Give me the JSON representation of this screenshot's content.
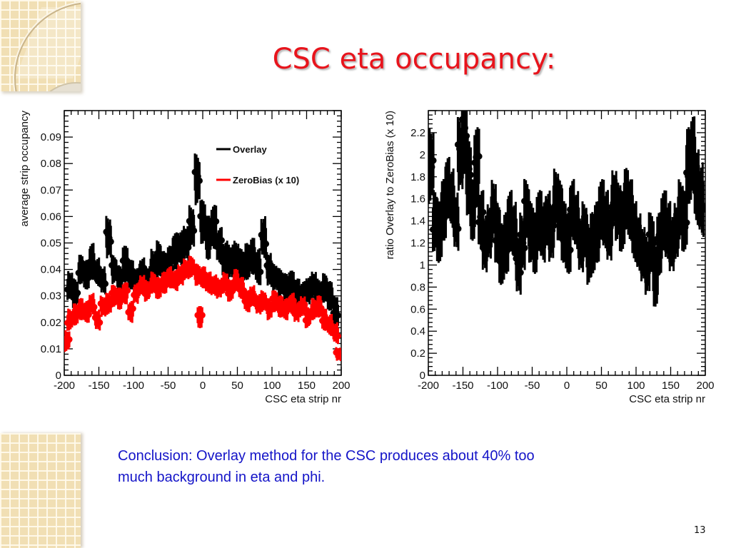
{
  "slide": {
    "title": "CSC eta occupancy:",
    "conclusion_line1": "Conclusion: Overlay method for the CSC produces about 40% too",
    "conclusion_line2": "much background in eta and phi.",
    "page_number": "13",
    "colors": {
      "title": "#e8141c",
      "conclusion": "#1414c8",
      "overlay": "#000000",
      "zerobias": "#ff0000",
      "decoration": "#f1dfb4"
    }
  },
  "chart_data": [
    {
      "type": "scatter",
      "title": "",
      "xlabel": "CSC eta strip nr",
      "ylabel": "average strip occupancy",
      "xlim": [
        -200,
        200
      ],
      "ylim": [
        0,
        0.1
      ],
      "x_ticks": [
        "-200",
        "-150",
        "-100",
        "-50",
        "0",
        "50",
        "100",
        "150",
        "200"
      ],
      "y_ticks": [
        "0",
        "0.01",
        "0.02",
        "0.03",
        "0.04",
        "0.05",
        "0.06",
        "0.07",
        "0.08",
        "0.09"
      ],
      "grid": false,
      "legend": {
        "placement": "top-right",
        "entries": [
          "Overlay",
          "ZeroBias (x 10)"
        ]
      },
      "series": [
        {
          "name": "Overlay",
          "color": "#000000",
          "x": [
            -192,
            -184,
            -176,
            -168,
            -160,
            -152,
            -144,
            -136,
            -128,
            -120,
            -112,
            -104,
            -96,
            -88,
            -80,
            -72,
            -64,
            -56,
            -48,
            -40,
            -32,
            -24,
            -16,
            -8,
            0,
            8,
            16,
            24,
            32,
            40,
            48,
            56,
            64,
            72,
            80,
            88,
            96,
            104,
            112,
            120,
            128,
            136,
            144,
            152,
            160,
            168,
            176,
            184,
            192
          ],
          "y": [
            0.034,
            0.031,
            0.04,
            0.038,
            0.043,
            0.039,
            0.036,
            0.052,
            0.04,
            0.036,
            0.042,
            0.038,
            0.035,
            0.039,
            0.036,
            0.041,
            0.044,
            0.04,
            0.042,
            0.047,
            0.048,
            0.05,
            0.056,
            0.074,
            0.058,
            0.052,
            0.056,
            0.049,
            0.044,
            0.043,
            0.044,
            0.041,
            0.043,
            0.045,
            0.041,
            0.052,
            0.04,
            0.037,
            0.035,
            0.033,
            0.034,
            0.031,
            0.03,
            0.032,
            0.034,
            0.031,
            0.033,
            0.03,
            0.024
          ],
          "err": [
            0.004,
            0.004,
            0.004,
            0.004,
            0.005,
            0.004,
            0.004,
            0.006,
            0.004,
            0.004,
            0.005,
            0.004,
            0.004,
            0.004,
            0.004,
            0.005,
            0.005,
            0.005,
            0.005,
            0.005,
            0.005,
            0.005,
            0.006,
            0.007,
            0.006,
            0.006,
            0.006,
            0.005,
            0.005,
            0.005,
            0.005,
            0.005,
            0.005,
            0.005,
            0.005,
            0.006,
            0.005,
            0.004,
            0.004,
            0.004,
            0.004,
            0.004,
            0.004,
            0.004,
            0.004,
            0.004,
            0.004,
            0.004,
            0.004
          ]
        },
        {
          "name": "ZeroBias (x 10)",
          "color": "#ff0000",
          "x": [
            -196,
            -192,
            -184,
            -176,
            -168,
            -160,
            -152,
            -144,
            -136,
            -128,
            -120,
            -112,
            -104,
            -96,
            -88,
            -80,
            -72,
            -64,
            -56,
            -48,
            -40,
            -32,
            -24,
            -16,
            -8,
            -4,
            0,
            8,
            16,
            24,
            32,
            40,
            48,
            56,
            64,
            72,
            80,
            88,
            96,
            104,
            112,
            120,
            128,
            136,
            144,
            152,
            160,
            168,
            176,
            184,
            192,
            196
          ],
          "y": [
            0.013,
            0.021,
            0.023,
            0.025,
            0.024,
            0.027,
            0.021,
            0.026,
            0.027,
            0.03,
            0.029,
            0.031,
            0.024,
            0.031,
            0.034,
            0.032,
            0.035,
            0.033,
            0.035,
            0.037,
            0.036,
            0.038,
            0.04,
            0.041,
            0.038,
            0.022,
            0.037,
            0.035,
            0.034,
            0.033,
            0.035,
            0.032,
            0.036,
            0.033,
            0.028,
            0.03,
            0.027,
            0.028,
            0.025,
            0.028,
            0.026,
            0.025,
            0.027,
            0.024,
            0.026,
            0.022,
            0.025,
            0.026,
            0.021,
            0.019,
            0.016,
            0.008
          ],
          "err": [
            0.003,
            0.003,
            0.003,
            0.003,
            0.003,
            0.003,
            0.003,
            0.003,
            0.003,
            0.003,
            0.003,
            0.003,
            0.003,
            0.003,
            0.003,
            0.003,
            0.003,
            0.003,
            0.003,
            0.003,
            0.003,
            0.003,
            0.003,
            0.003,
            0.003,
            0.003,
            0.003,
            0.003,
            0.003,
            0.003,
            0.003,
            0.003,
            0.003,
            0.003,
            0.003,
            0.003,
            0.003,
            0.003,
            0.003,
            0.003,
            0.003,
            0.003,
            0.003,
            0.003,
            0.003,
            0.003,
            0.003,
            0.003,
            0.003,
            0.003,
            0.003,
            0.002
          ]
        }
      ]
    },
    {
      "type": "scatter",
      "title": "",
      "xlabel": "CSC eta strip nr",
      "ylabel": "ratio Overlay to ZeroBias (x 10)",
      "xlim": [
        -200,
        200
      ],
      "ylim": [
        0,
        2.4
      ],
      "x_ticks": [
        "-200",
        "-150",
        "-100",
        "-50",
        "0",
        "50",
        "100",
        "150",
        "200"
      ],
      "y_ticks": [
        "0",
        "0.2",
        "0.4",
        "0.6",
        "0.8",
        "1",
        "1.2",
        "1.4",
        "1.6",
        "1.8",
        "2",
        "2.2"
      ],
      "grid": false,
      "legend": null,
      "series": [
        {
          "name": "ratio",
          "color": "#000000",
          "x": [
            -196,
            -190,
            -184,
            -178,
            -172,
            -166,
            -160,
            -154,
            -148,
            -142,
            -136,
            -130,
            -124,
            -118,
            -112,
            -106,
            -100,
            -94,
            -88,
            -82,
            -76,
            -70,
            -64,
            -58,
            -52,
            -46,
            -40,
            -34,
            -28,
            -22,
            -16,
            -10,
            -4,
            2,
            8,
            14,
            20,
            26,
            32,
            38,
            44,
            50,
            56,
            62,
            68,
            74,
            80,
            86,
            92,
            98,
            104,
            110,
            116,
            122,
            128,
            134,
            140,
            146,
            152,
            158,
            164,
            170,
            176,
            182,
            188,
            194
          ],
          "y": [
            1.9,
            1.4,
            1.3,
            1.5,
            1.7,
            1.6,
            1.4,
            2.0,
            2.2,
            1.8,
            1.5,
            1.9,
            1.4,
            1.2,
            1.3,
            1.5,
            1.3,
            1.1,
            1.2,
            1.4,
            1.3,
            1.0,
            1.2,
            1.5,
            1.3,
            1.2,
            1.4,
            1.3,
            1.4,
            1.3,
            1.6,
            1.5,
            1.3,
            1.2,
            1.5,
            1.4,
            1.2,
            1.3,
            1.1,
            1.2,
            1.3,
            1.5,
            1.4,
            1.3,
            1.6,
            1.5,
            1.4,
            1.6,
            1.5,
            1.3,
            1.2,
            1.1,
            1.0,
            1.2,
            0.9,
            1.2,
            1.4,
            1.3,
            1.2,
            1.3,
            1.5,
            1.4,
            1.9,
            2.0,
            1.7,
            1.6
          ],
          "err": [
            0.25,
            0.2,
            0.2,
            0.2,
            0.2,
            0.2,
            0.2,
            0.25,
            0.3,
            0.25,
            0.2,
            0.25,
            0.2,
            0.2,
            0.2,
            0.2,
            0.2,
            0.2,
            0.2,
            0.2,
            0.2,
            0.2,
            0.2,
            0.2,
            0.2,
            0.2,
            0.2,
            0.2,
            0.2,
            0.2,
            0.2,
            0.2,
            0.2,
            0.2,
            0.2,
            0.2,
            0.2,
            0.2,
            0.2,
            0.2,
            0.2,
            0.2,
            0.2,
            0.2,
            0.2,
            0.2,
            0.2,
            0.2,
            0.2,
            0.2,
            0.2,
            0.2,
            0.2,
            0.2,
            0.2,
            0.2,
            0.2,
            0.2,
            0.2,
            0.2,
            0.2,
            0.2,
            0.25,
            0.25,
            0.25,
            0.25
          ]
        }
      ]
    }
  ]
}
